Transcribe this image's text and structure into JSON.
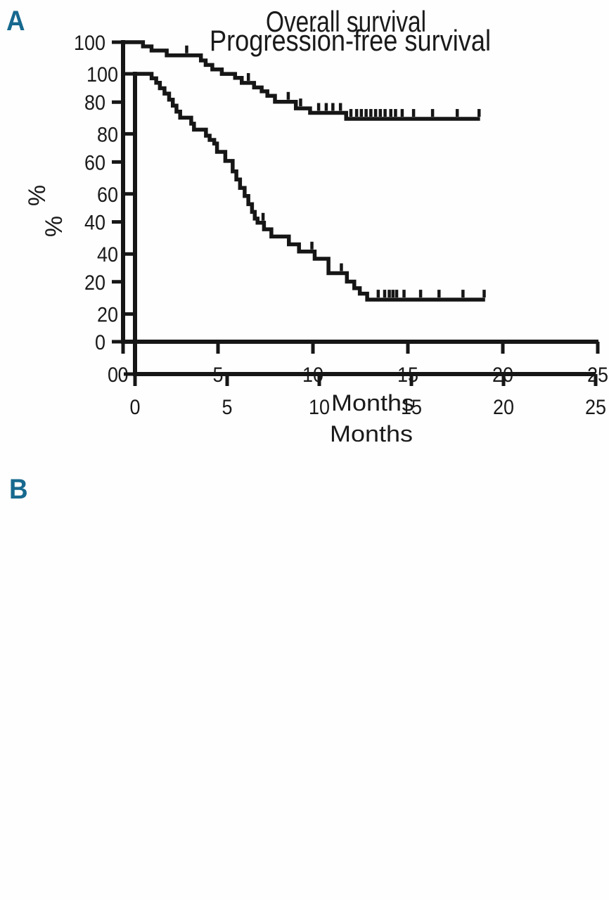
{
  "figure": {
    "background": "#fefefe"
  },
  "colors": {
    "curve": "#161616",
    "axis": "#161616",
    "text": "#1a1a1a",
    "panel_label": "#17698f"
  },
  "chart_data": [
    {
      "type": "line",
      "subtype": "kaplan-meier-step",
      "panel_label": "A",
      "title": "Overall survival",
      "xlabel": "Months",
      "ylabel": "%",
      "xlim": [
        0,
        25
      ],
      "ylim": [
        0,
        100
      ],
      "xticks": [
        0,
        5,
        10,
        15,
        20,
        25
      ],
      "yticks": [
        100,
        80,
        60,
        40,
        20,
        0
      ],
      "grid": false,
      "legend": "none",
      "end_month": 18.8,
      "steps": [
        [
          0,
          100
        ],
        [
          1.05,
          98.6
        ],
        [
          1.5,
          97.2
        ],
        [
          2.3,
          95.6
        ],
        [
          4.1,
          93.9
        ],
        [
          4.35,
          92.4
        ],
        [
          4.7,
          90.9
        ],
        [
          5.2,
          89.4
        ],
        [
          5.9,
          88.1
        ],
        [
          6.25,
          86.4
        ],
        [
          6.9,
          84.9
        ],
        [
          7.3,
          83.6
        ],
        [
          7.6,
          82.1
        ],
        [
          8.0,
          80.1
        ],
        [
          9.1,
          77.9
        ],
        [
          9.85,
          76.4
        ],
        [
          11.75,
          74.4
        ]
      ],
      "censor_marks": [
        [
          3.35,
          95.6
        ],
        [
          6.6,
          86.4
        ],
        [
          8.7,
          80.1
        ],
        [
          9.35,
          77.9
        ],
        [
          10.3,
          76.4
        ],
        [
          10.7,
          76.4
        ],
        [
          11.05,
          76.4
        ],
        [
          11.45,
          76.4
        ],
        [
          12.0,
          74.4
        ],
        [
          12.3,
          74.4
        ],
        [
          12.55,
          74.4
        ],
        [
          12.8,
          74.4
        ],
        [
          13.05,
          74.4
        ],
        [
          13.3,
          74.4
        ],
        [
          13.55,
          74.4
        ],
        [
          13.8,
          74.4
        ],
        [
          14.1,
          74.4
        ],
        [
          14.35,
          74.4
        ],
        [
          14.7,
          74.4
        ],
        [
          15.3,
          74.4
        ],
        [
          16.3,
          74.4
        ],
        [
          17.6,
          74.4
        ],
        [
          18.75,
          74.4
        ]
      ]
    },
    {
      "type": "line",
      "subtype": "kaplan-meier-step",
      "panel_label": "B",
      "title": "Progression-free survival",
      "xlabel": "Months",
      "ylabel": "%",
      "xlim": [
        0,
        25
      ],
      "ylim": [
        0,
        100
      ],
      "xticks": [
        0,
        5,
        10,
        15,
        20,
        25
      ],
      "yticks": [
        100,
        80,
        60,
        40,
        20,
        0
      ],
      "grid": false,
      "legend": "none",
      "end_month": 19.0,
      "steps": [
        [
          0,
          100
        ],
        [
          0.9,
          98.5
        ],
        [
          1.15,
          97.0
        ],
        [
          1.35,
          95.2
        ],
        [
          1.6,
          93.4
        ],
        [
          1.85,
          91.4
        ],
        [
          2.05,
          89.4
        ],
        [
          2.25,
          87.4
        ],
        [
          2.45,
          85.4
        ],
        [
          3.05,
          83.4
        ],
        [
          3.2,
          81.4
        ],
        [
          3.85,
          79.4
        ],
        [
          4.05,
          78.0
        ],
        [
          4.3,
          76.8
        ],
        [
          4.45,
          74.0
        ],
        [
          4.9,
          71.0
        ],
        [
          5.3,
          67.5
        ],
        [
          5.5,
          64.8
        ],
        [
          5.7,
          62.0
        ],
        [
          5.95,
          59.3
        ],
        [
          6.15,
          56.6
        ],
        [
          6.35,
          54.0
        ],
        [
          6.5,
          51.8
        ],
        [
          6.65,
          50.4
        ],
        [
          7.0,
          48.2
        ],
        [
          7.4,
          45.8
        ],
        [
          8.35,
          43.2
        ],
        [
          8.9,
          40.8
        ],
        [
          9.75,
          38.4
        ],
        [
          10.5,
          33.6
        ],
        [
          11.5,
          30.8
        ],
        [
          11.9,
          28.6
        ],
        [
          12.2,
          26.8
        ],
        [
          12.6,
          24.8
        ]
      ],
      "censor_marks": [
        [
          6.95,
          50.4
        ],
        [
          9.6,
          40.8
        ],
        [
          11.2,
          33.6
        ],
        [
          13.2,
          24.8
        ],
        [
          13.55,
          24.8
        ],
        [
          13.8,
          24.8
        ],
        [
          14.0,
          24.8
        ],
        [
          14.2,
          24.8
        ],
        [
          14.6,
          24.8
        ],
        [
          15.5,
          24.8
        ],
        [
          16.5,
          24.8
        ],
        [
          17.8,
          24.8
        ],
        [
          18.95,
          24.8
        ]
      ]
    }
  ]
}
